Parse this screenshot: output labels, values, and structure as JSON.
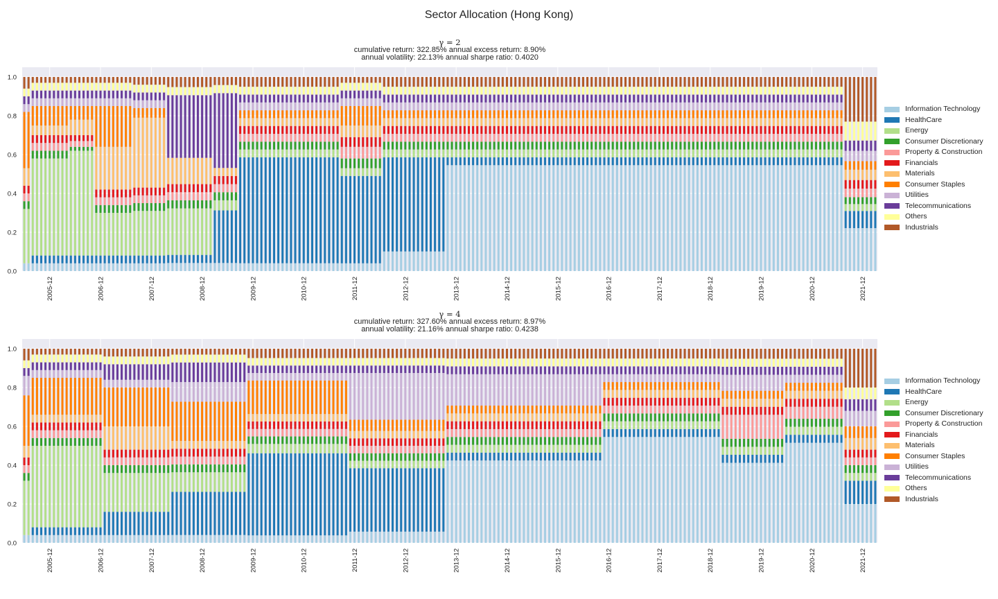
{
  "figure": {
    "title": "Sector Allocation (Hong Kong)"
  },
  "legend_labels": [
    "Information Technology",
    "HealthCare",
    "Energy",
    "Consumer Discretionary",
    "Property & Construction",
    "Financials",
    "Materials",
    "Consumer Staples",
    "Utilities",
    "Telecommunications",
    "Others",
    "Industrials"
  ],
  "colors": [
    "#a6cee3",
    "#1f78b4",
    "#b2df8a",
    "#33a02c",
    "#fb9a99",
    "#e31a1c",
    "#fdbf6f",
    "#ff7f00",
    "#cab2d6",
    "#6a3d9a",
    "#ffff99",
    "#b15928"
  ],
  "chart_data": [
    {
      "type": "bar",
      "stacked": true,
      "title": "γ = 2",
      "stats": [
        "cumulative return: 322.85%  annual excess return: 8.90%",
        "annual volatility: 22.13%   annual sharpe ratio: 0.4020"
      ],
      "ylim": [
        0,
        1.05
      ],
      "yticks": [
        "0.0",
        "0.2",
        "0.4",
        "0.6",
        "0.8",
        "1.0"
      ],
      "xtick_labels": [
        "2005-12",
        "2006-12",
        "2007-12",
        "2008-12",
        "2009-12",
        "2010-12",
        "2011-12",
        "2012-12",
        "2013-12",
        "2014-12",
        "2015-12",
        "2016-12",
        "2017-12",
        "2018-12",
        "2019-12",
        "2020-12",
        "2021-12"
      ],
      "xticks_at_bar": [
        6,
        18,
        30,
        42,
        54,
        66,
        78,
        90,
        102,
        114,
        126,
        138,
        150,
        162,
        174,
        186,
        198
      ],
      "n_bars": 202,
      "grid": true,
      "legend_position": "center-right",
      "segments_note": "Segment shares per bar, keyed by sector index; bars within a regime share the listed values (one per run of months).",
      "regimes": [
        {
          "from": 0,
          "to": 1,
          "IT": 0.04,
          "HC": 0.0,
          "EN": 0.28,
          "CD": 0.04,
          "PC": 0.04,
          "FI": 0.04,
          "MA": 0.09,
          "CS": 0.29,
          "UT": 0.04,
          "TE": 0.04,
          "OT": 0.04,
          "IN": 0.06
        },
        {
          "from": 2,
          "to": 10,
          "IT": 0.04,
          "HC": 0.04,
          "EN": 0.5,
          "CD": 0.04,
          "PC": 0.04,
          "FI": 0.04,
          "MA": 0.05,
          "CS": 0.1,
          "UT": 0.04,
          "TE": 0.04,
          "OT": 0.04,
          "IN": 0.03
        },
        {
          "from": 11,
          "to": 16,
          "IT": 0.04,
          "HC": 0.04,
          "EN": 0.54,
          "CD": 0.02,
          "PC": 0.03,
          "FI": 0.03,
          "MA": 0.08,
          "CS": 0.07,
          "UT": 0.04,
          "TE": 0.04,
          "OT": 0.04,
          "IN": 0.03
        },
        {
          "from": 17,
          "to": 25,
          "IT": 0.04,
          "HC": 0.04,
          "EN": 0.22,
          "CD": 0.04,
          "PC": 0.04,
          "FI": 0.04,
          "MA": 0.22,
          "CS": 0.21,
          "UT": 0.04,
          "TE": 0.04,
          "OT": 0.04,
          "IN": 0.03
        },
        {
          "from": 26,
          "to": 33,
          "IT": 0.04,
          "HC": 0.04,
          "EN": 0.23,
          "CD": 0.04,
          "PC": 0.04,
          "FI": 0.04,
          "MA": 0.36,
          "CS": 0.05,
          "UT": 0.04,
          "TE": 0.04,
          "OT": 0.04,
          "IN": 0.04
        },
        {
          "from": 34,
          "to": 44,
          "IT": 0.04,
          "HC": 0.04,
          "EN": 0.23,
          "CD": 0.04,
          "PC": 0.04,
          "FI": 0.04,
          "MA": 0.13,
          "CS": 0.0,
          "UT": 0.0,
          "TE": 0.31,
          "OT": 0.04,
          "IN": 0.05
        },
        {
          "from": 45,
          "to": 50,
          "IT": 0.04,
          "HC": 0.26,
          "EN": 0.05,
          "CD": 0.04,
          "PC": 0.04,
          "FI": 0.04,
          "MA": 0.04,
          "CS": 0.0,
          "UT": 0.0,
          "TE": 0.37,
          "OT": 0.04,
          "IN": 0.04
        },
        {
          "from": 51,
          "to": 74,
          "IT": 0.04,
          "HC": 0.54,
          "EN": 0.04,
          "CD": 0.04,
          "PC": 0.04,
          "FI": 0.04,
          "MA": 0.04,
          "CS": 0.04,
          "UT": 0.04,
          "TE": 0.04,
          "OT": 0.04,
          "IN": 0.05
        },
        {
          "from": 75,
          "to": 84,
          "IT": 0.04,
          "HC": 0.45,
          "EN": 0.04,
          "CD": 0.05,
          "PC": 0.06,
          "FI": 0.05,
          "MA": 0.06,
          "CS": 0.1,
          "UT": 0.04,
          "TE": 0.04,
          "OT": 0.04,
          "IN": 0.03
        },
        {
          "from": 85,
          "to": 99,
          "IT": 0.1,
          "HC": 0.48,
          "EN": 0.04,
          "CD": 0.04,
          "PC": 0.04,
          "FI": 0.04,
          "MA": 0.04,
          "CS": 0.04,
          "UT": 0.04,
          "TE": 0.04,
          "OT": 0.04,
          "IN": 0.05
        },
        {
          "from": 100,
          "to": 193,
          "IT": 0.54,
          "HC": 0.04,
          "EN": 0.04,
          "CD": 0.04,
          "PC": 0.04,
          "FI": 0.04,
          "MA": 0.04,
          "CS": 0.04,
          "UT": 0.04,
          "TE": 0.04,
          "OT": 0.04,
          "IN": 0.05
        },
        {
          "from": 194,
          "to": 201,
          "IT": 0.25,
          "HC": 0.1,
          "EN": 0.04,
          "CD": 0.04,
          "PC": 0.05,
          "FI": 0.05,
          "MA": 0.06,
          "CS": 0.05,
          "UT": 0.06,
          "TE": 0.06,
          "OT": 0.11,
          "IN": 0.26
        }
      ]
    },
    {
      "type": "bar",
      "stacked": true,
      "title": "γ = 4",
      "stats": [
        "cumulative return: 327.60%  annual excess return: 8.97%",
        "annual volatility: 21.16%   annual sharpe ratio: 0.4238"
      ],
      "ylim": [
        0,
        1.05
      ],
      "yticks": [
        "0.0",
        "0.2",
        "0.4",
        "0.6",
        "0.8",
        "1.0"
      ],
      "xtick_labels": [
        "2005-12",
        "2006-12",
        "2007-12",
        "2008-12",
        "2009-12",
        "2010-12",
        "2011-12",
        "2012-12",
        "2013-12",
        "2014-12",
        "2015-12",
        "2016-12",
        "2017-12",
        "2018-12",
        "2019-12",
        "2020-12",
        "2021-12"
      ],
      "xticks_at_bar": [
        6,
        18,
        30,
        42,
        54,
        66,
        78,
        90,
        102,
        114,
        126,
        138,
        150,
        162,
        174,
        186,
        198
      ],
      "n_bars": 202,
      "grid": true,
      "legend_position": "center-right",
      "regimes": [
        {
          "from": 0,
          "to": 1,
          "IT": 0.04,
          "HC": 0.0,
          "EN": 0.28,
          "CD": 0.04,
          "PC": 0.04,
          "FI": 0.04,
          "MA": 0.06,
          "CS": 0.26,
          "UT": 0.1,
          "TE": 0.04,
          "OT": 0.04,
          "IN": 0.06
        },
        {
          "from": 2,
          "to": 18,
          "IT": 0.04,
          "HC": 0.04,
          "EN": 0.42,
          "CD": 0.04,
          "PC": 0.04,
          "FI": 0.04,
          "MA": 0.04,
          "CS": 0.19,
          "UT": 0.04,
          "TE": 0.04,
          "OT": 0.04,
          "IN": 0.03
        },
        {
          "from": 19,
          "to": 34,
          "IT": 0.04,
          "HC": 0.12,
          "EN": 0.2,
          "CD": 0.04,
          "PC": 0.04,
          "FI": 0.04,
          "MA": 0.12,
          "CS": 0.2,
          "UT": 0.04,
          "TE": 0.08,
          "OT": 0.04,
          "IN": 0.04
        },
        {
          "from": 35,
          "to": 52,
          "IT": 0.04,
          "HC": 0.22,
          "EN": 0.1,
          "CD": 0.04,
          "PC": 0.04,
          "FI": 0.04,
          "MA": 0.04,
          "CS": 0.2,
          "UT": 0.1,
          "TE": 0.1,
          "OT": 0.04,
          "IN": 0.03
        },
        {
          "from": 53,
          "to": 76,
          "IT": 0.04,
          "HC": 0.44,
          "EN": 0.05,
          "CD": 0.04,
          "PC": 0.04,
          "FI": 0.04,
          "MA": 0.04,
          "CS": 0.18,
          "UT": 0.04,
          "TE": 0.04,
          "OT": 0.04,
          "IN": 0.05
        },
        {
          "from": 77,
          "to": 99,
          "IT": 0.06,
          "HC": 0.34,
          "EN": 0.04,
          "CD": 0.04,
          "PC": 0.04,
          "FI": 0.04,
          "MA": 0.04,
          "CS": 0.06,
          "UT": 0.25,
          "TE": 0.04,
          "OT": 0.04,
          "IN": 0.05
        },
        {
          "from": 100,
          "to": 136,
          "IT": 0.42,
          "HC": 0.04,
          "EN": 0.04,
          "CD": 0.04,
          "PC": 0.04,
          "FI": 0.04,
          "MA": 0.04,
          "CS": 0.04,
          "UT": 0.16,
          "TE": 0.04,
          "OT": 0.04,
          "IN": 0.05
        },
        {
          "from": 137,
          "to": 164,
          "IT": 0.54,
          "HC": 0.04,
          "EN": 0.04,
          "CD": 0.04,
          "PC": 0.04,
          "FI": 0.04,
          "MA": 0.04,
          "CS": 0.04,
          "UT": 0.04,
          "TE": 0.04,
          "OT": 0.04,
          "IN": 0.05
        },
        {
          "from": 165,
          "to": 179,
          "IT": 0.4,
          "HC": 0.04,
          "EN": 0.04,
          "CD": 0.04,
          "PC": 0.12,
          "FI": 0.04,
          "MA": 0.04,
          "CS": 0.04,
          "UT": 0.08,
          "TE": 0.04,
          "OT": 0.04,
          "IN": 0.05
        },
        {
          "from": 180,
          "to": 193,
          "IT": 0.5,
          "HC": 0.04,
          "EN": 0.04,
          "CD": 0.04,
          "PC": 0.06,
          "FI": 0.04,
          "MA": 0.04,
          "CS": 0.04,
          "UT": 0.04,
          "TE": 0.04,
          "OT": 0.04,
          "IN": 0.05
        },
        {
          "from": 194,
          "to": 201,
          "IT": 0.2,
          "HC": 0.12,
          "EN": 0.04,
          "CD": 0.04,
          "PC": 0.04,
          "FI": 0.04,
          "MA": 0.06,
          "CS": 0.06,
          "UT": 0.08,
          "TE": 0.06,
          "OT": 0.06,
          "IN": 0.2
        }
      ]
    }
  ]
}
